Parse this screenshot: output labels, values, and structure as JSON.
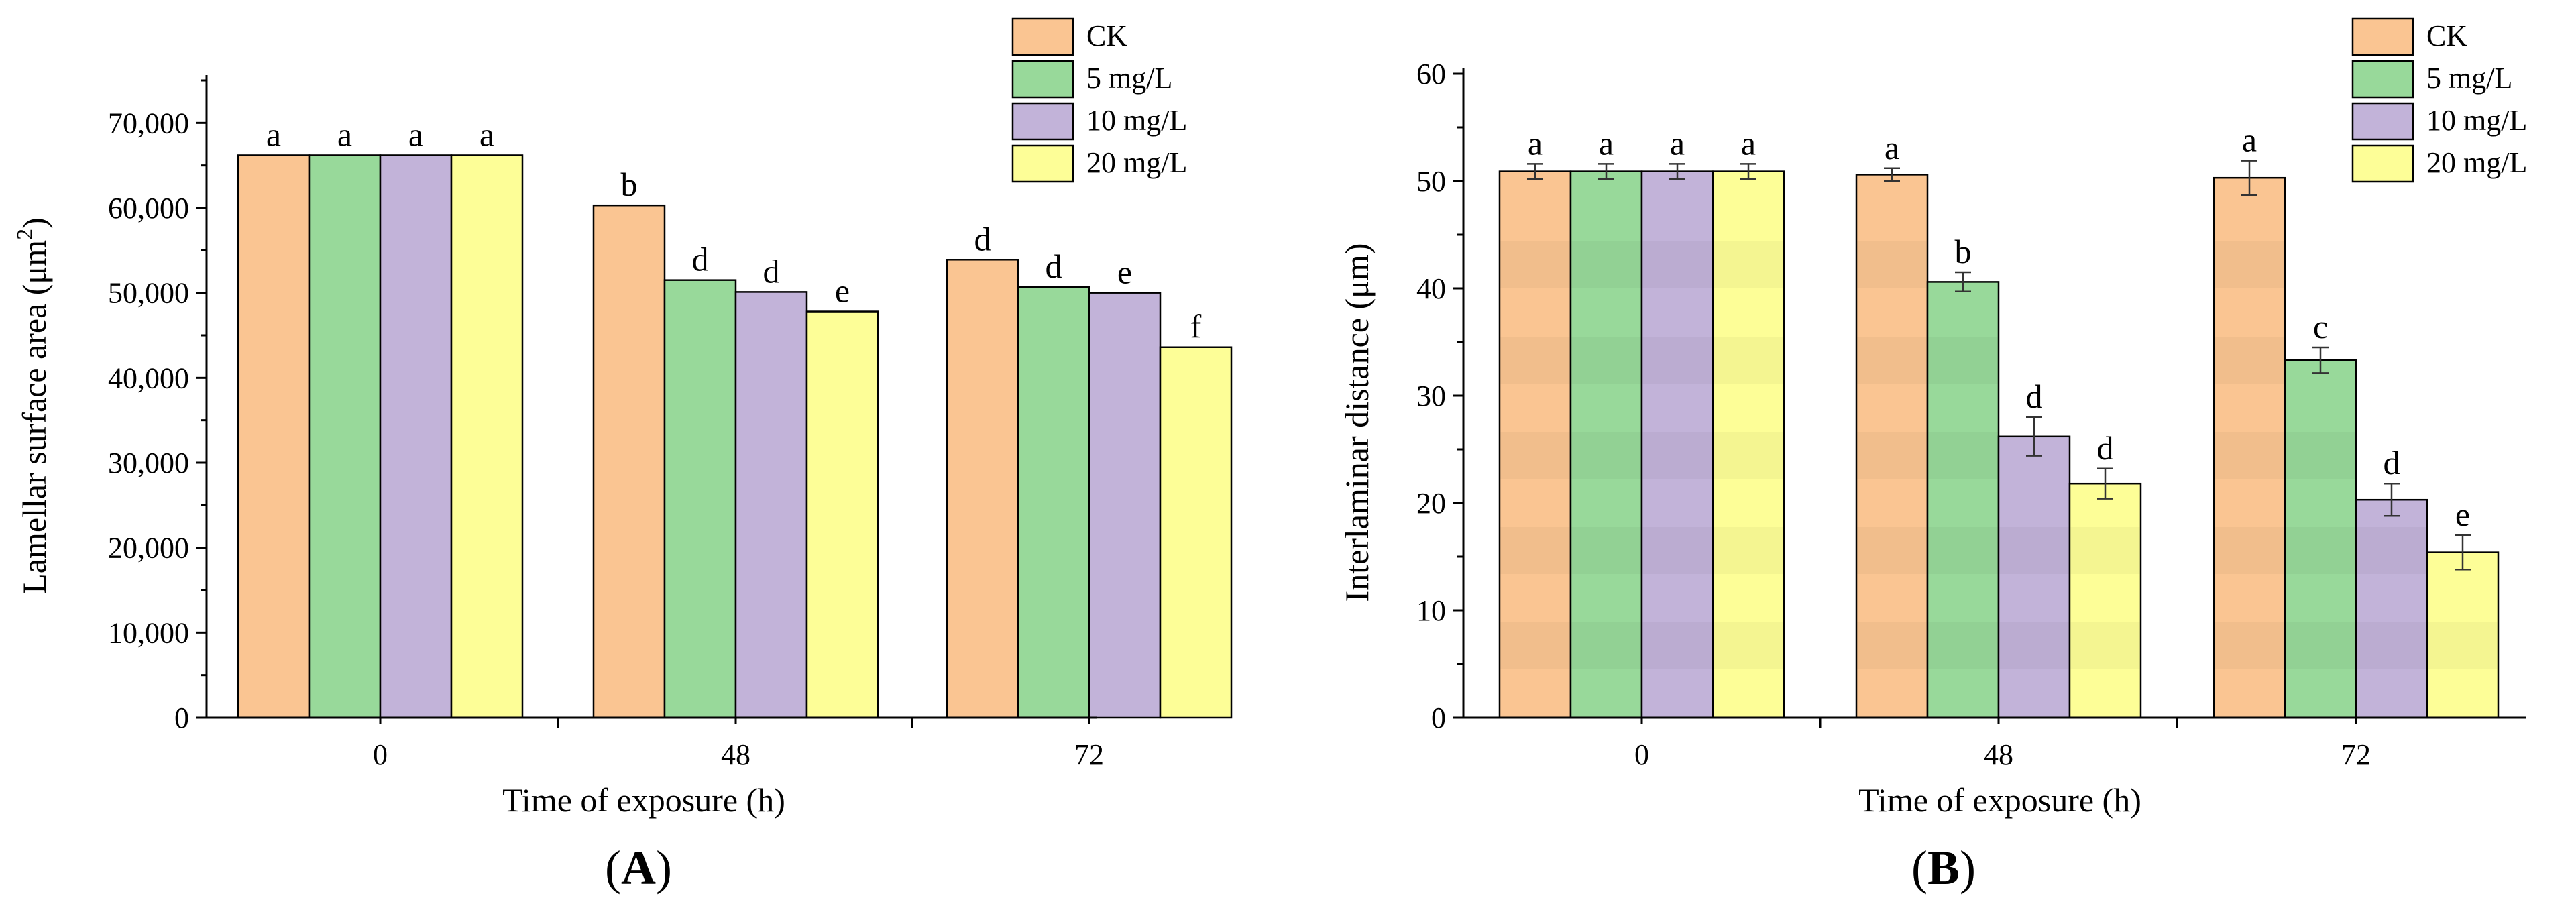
{
  "colors": {
    "CK": "#FAC592",
    "5 mg/L": "#98D99A",
    "10 mg/L": "#C2B3D9",
    "20 mg/L": "#FDFE97"
  },
  "chart_data": [
    {
      "panel": "A",
      "type": "bar",
      "title": "",
      "xlabel": "Time of exposure (h)",
      "ylabel": "Lamellar surface area (μm²)",
      "ylabel_main": "Lamellar surface area (μm",
      "ylabel_sup": "2",
      "ylabel_close": ")",
      "categories": [
        "0",
        "48",
        "72"
      ],
      "ylim": [
        0,
        75000
      ],
      "yticks": [
        0,
        10000,
        20000,
        30000,
        40000,
        50000,
        60000,
        70000
      ],
      "ytick_labels": [
        "0",
        "10,000",
        "20,000",
        "30,000",
        "40,000",
        "50,000",
        "60,000",
        "70,000"
      ],
      "legend": [
        "CK",
        "5 mg/L",
        "10 mg/L",
        "20 mg/L"
      ],
      "legend_position": "top-right",
      "series": [
        {
          "name": "CK",
          "values": [
            66200,
            60300,
            53900
          ],
          "letters": [
            "a",
            "b",
            "d"
          ]
        },
        {
          "name": "5 mg/L",
          "values": [
            66200,
            51500,
            50700
          ],
          "letters": [
            "a",
            "d",
            "d"
          ]
        },
        {
          "name": "10 mg/L",
          "values": [
            66200,
            50100,
            50000
          ],
          "letters": [
            "a",
            "d",
            "e"
          ]
        },
        {
          "name": "20 mg/L",
          "values": [
            66200,
            47800,
            43600
          ],
          "letters": [
            "a",
            "e",
            "f"
          ]
        }
      ]
    },
    {
      "panel": "B",
      "type": "bar",
      "title": "",
      "xlabel": "Time of exposure (h)",
      "ylabel": "Interlaminar distance (μm)",
      "categories": [
        "0",
        "48",
        "72"
      ],
      "ylim": [
        0,
        60
      ],
      "yticks": [
        0,
        10,
        20,
        30,
        40,
        50,
        60
      ],
      "ytick_labels": [
        "0",
        "10",
        "20",
        "30",
        "40",
        "50",
        "60"
      ],
      "legend": [
        "CK",
        "5 mg/L",
        "10 mg/L",
        "20 mg/L"
      ],
      "legend_position": "top-right",
      "series": [
        {
          "name": "CK",
          "values": [
            50.9,
            50.6,
            50.3
          ],
          "errors": [
            0.7,
            0.6,
            1.6
          ],
          "letters": [
            "a",
            "a",
            "a"
          ]
        },
        {
          "name": "5 mg/L",
          "values": [
            50.9,
            40.6,
            33.3
          ],
          "errors": [
            0.7,
            0.9,
            1.2
          ],
          "letters": [
            "a",
            "b",
            "c"
          ]
        },
        {
          "name": "10 mg/L",
          "values": [
            50.9,
            26.2,
            20.3
          ],
          "errors": [
            0.7,
            1.8,
            1.5
          ],
          "letters": [
            "a",
            "d",
            "d"
          ]
        },
        {
          "name": "20 mg/L",
          "values": [
            50.9,
            21.8,
            15.4
          ],
          "errors": [
            0.7,
            1.4,
            1.6
          ],
          "letters": [
            "a",
            "d",
            "e"
          ]
        }
      ]
    }
  ]
}
